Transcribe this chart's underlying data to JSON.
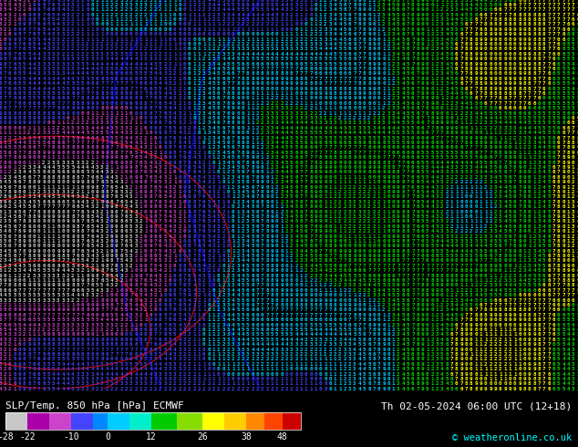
{
  "title_left": "SLP/Temp. 850 hPa [hPa] ECMWF",
  "title_right": "Th 02-05-2024 06:00 UTC (12+18)",
  "copyright": "© weatheronline.co.uk",
  "colorbar_ticks": [
    -28,
    -22,
    -10,
    0,
    12,
    26,
    38,
    48
  ],
  "colorbar_vmin": -28,
  "colorbar_vmax": 48,
  "bg_color": "#000000",
  "map_bg": "#1a6b1a",
  "fig_width": 6.34,
  "fig_height": 4.9,
  "dpi": 100,
  "colorbar_colors": [
    "#c8c8c8",
    "#a000a0",
    "#0000ff",
    "#00c8ff",
    "#00ff00",
    "#ffff00",
    "#ff8c00",
    "#ff0000",
    "#8b0000"
  ],
  "colorbar_boundaries": [
    -28,
    -22,
    -10,
    0,
    12,
    26,
    38,
    48,
    58
  ],
  "map_text_color": "#00ff00",
  "contour_color_red": "#ff0000",
  "contour_color_blue": "#0000ff",
  "map_numbers_color": "#00aa00"
}
